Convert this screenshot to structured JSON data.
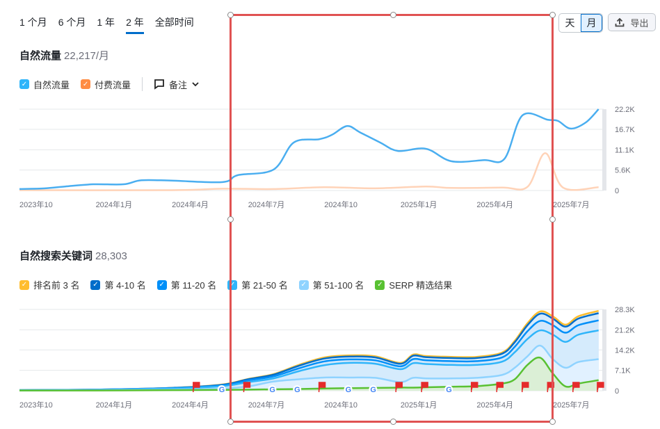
{
  "range_tabs": [
    {
      "label": "1 个月"
    },
    {
      "label": "6 个月"
    },
    {
      "label": "1 年"
    },
    {
      "label": "2 年",
      "active": true
    },
    {
      "label": "全部时间"
    }
  ],
  "granularity": {
    "day": "天",
    "month": "月",
    "selected": "月"
  },
  "export_label": "导出",
  "traffic": {
    "title": "自然流量",
    "value": "22,217/月",
    "legend": [
      {
        "label": "自然流量",
        "color": "#2fb5fa"
      },
      {
        "label": "付费流量",
        "color": "#ff8c43"
      }
    ],
    "notes_label": "备注"
  },
  "keywords": {
    "title": "自然搜索关键词",
    "value": "28,303",
    "legend": [
      {
        "label": "排名前 3 名",
        "color": "#ffbd2e"
      },
      {
        "label": "第 4-10 名",
        "color": "#006dca"
      },
      {
        "label": "第 11-20 名",
        "color": "#008ff8"
      },
      {
        "label": "第 21-50 名",
        "color": "#2fb5fa"
      },
      {
        "label": "第 51-100 名",
        "color": "#8fd3ff"
      },
      {
        "label": "SERP 精选结果",
        "color": "#59c132"
      }
    ]
  },
  "chart_data": [
    {
      "type": "line",
      "title": "自然流量",
      "x_unit": "months since 2023-10",
      "xlim": [
        0,
        23
      ],
      "ylim": [
        0,
        22.2
      ],
      "y_unit": "K",
      "x_ticks": [
        {
          "x": 0,
          "label": "2023年10"
        },
        {
          "x": 3,
          "label": "2024年1月"
        },
        {
          "x": 6,
          "label": "2024年4月"
        },
        {
          "x": 9,
          "label": "2024年7月"
        },
        {
          "x": 12,
          "label": "2024年10"
        },
        {
          "x": 15,
          "label": "2025年1月"
        },
        {
          "x": 18,
          "label": "2025年4月"
        },
        {
          "x": 21,
          "label": "2025年7月"
        }
      ],
      "y_ticks": [
        {
          "v": 0,
          "label": "0"
        },
        {
          "v": 5.6,
          "label": "5.6K"
        },
        {
          "v": 11.1,
          "label": "11.1K"
        },
        {
          "v": 16.7,
          "label": "16.7K"
        },
        {
          "v": 22.2,
          "label": "22.2K"
        }
      ],
      "series": [
        {
          "name": "自然流量",
          "color": "#4aaef0",
          "points": [
            [
              0,
              0.4
            ],
            [
              1,
              0.6
            ],
            [
              1.8,
              1.1
            ],
            [
              2.9,
              1.7
            ],
            [
              4.1,
              1.7
            ],
            [
              4.8,
              2.8
            ],
            [
              6,
              2.7
            ],
            [
              8,
              2.3
            ],
            [
              8.6,
              4.2
            ],
            [
              10,
              5.7
            ],
            [
              10.8,
              13.1
            ],
            [
              11.8,
              14
            ],
            [
              12.3,
              15.2
            ],
            [
              12.9,
              17.6
            ],
            [
              13.4,
              15.9
            ],
            [
              14.2,
              13.1
            ],
            [
              14.9,
              10.8
            ],
            [
              16,
              11.4
            ],
            [
              17,
              8
            ],
            [
              18.3,
              8.3
            ],
            [
              19.1,
              8.7
            ],
            [
              19.8,
              20.5
            ],
            [
              20.8,
              19.3
            ],
            [
              21.2,
              19
            ],
            [
              21.7,
              16.9
            ],
            [
              22.3,
              18.6
            ],
            [
              22.8,
              22.2
            ]
          ]
        },
        {
          "name": "付费流量",
          "color": "#ffd3b8",
          "points": [
            [
              0,
              0.1
            ],
            [
              6,
              0.1
            ],
            [
              8,
              0.5
            ],
            [
              10,
              0.4
            ],
            [
              12,
              0.9
            ],
            [
              14,
              0.6
            ],
            [
              16,
              1.1
            ],
            [
              17,
              0.7
            ],
            [
              19,
              0.8
            ],
            [
              20,
              1
            ],
            [
              20.7,
              10.2
            ],
            [
              21.4,
              0.8
            ],
            [
              22.8,
              0.9
            ]
          ]
        }
      ]
    },
    {
      "type": "area",
      "title": "自然搜索关键词",
      "x_unit": "months since 2023-10",
      "xlim": [
        0,
        23
      ],
      "ylim": [
        0,
        28.3
      ],
      "y_unit": "K",
      "x_ticks": [
        {
          "x": 0,
          "label": "2023年10"
        },
        {
          "x": 3,
          "label": "2024年1月"
        },
        {
          "x": 6,
          "label": "2024年4月"
        },
        {
          "x": 9,
          "label": "2024年7月"
        },
        {
          "x": 12,
          "label": "2024年10"
        },
        {
          "x": 15,
          "label": "2025年1月"
        },
        {
          "x": 18,
          "label": "2025年4月"
        },
        {
          "x": 21,
          "label": "2025年7月"
        }
      ],
      "y_ticks": [
        {
          "v": 0,
          "label": "0"
        },
        {
          "v": 7.1,
          "label": "7.1K"
        },
        {
          "v": 14.2,
          "label": "14.2K"
        },
        {
          "v": 21.2,
          "label": "21.2K"
        },
        {
          "v": 28.3,
          "label": "28.3K"
        }
      ],
      "x": [
        0,
        3,
        6,
        8,
        9,
        10,
        11,
        12,
        13,
        14,
        15,
        15.5,
        16,
        17,
        18,
        19,
        19.5,
        20,
        20.5,
        21,
        21.5,
        22,
        22.8
      ],
      "series": [
        {
          "name": "排名前 3 名",
          "color": "#ffbd2e",
          "values": [
            0.2,
            0.4,
            1,
            2.2,
            4.1,
            5.8,
            9,
            11.6,
            12.3,
            12,
            9.7,
            12.6,
            12.1,
            11.8,
            11.8,
            13.3,
            17.4,
            23.5,
            27.6,
            25.9,
            23,
            25.9,
            27.8
          ]
        },
        {
          "name": "第 4-10 名",
          "color": "#006dca",
          "values": [
            0.2,
            0.4,
            1,
            2.1,
            4,
            5.6,
            8.7,
            11.2,
            11.9,
            11.6,
            9.4,
            12.2,
            11.7,
            11.4,
            11.4,
            12.9,
            16.9,
            22.8,
            26.8,
            25.1,
            22.3,
            25.1,
            27
          ]
        },
        {
          "name": "第 11-20 名",
          "color": "#008ff8",
          "values": [
            0.2,
            0.4,
            0.9,
            1.9,
            3.6,
            5,
            7.8,
            10.2,
            10.9,
            10.6,
            8.5,
            11,
            10.6,
            10.3,
            10.3,
            11.6,
            15.3,
            20.7,
            24.3,
            22.8,
            20.2,
            22.8,
            24.5
          ]
        },
        {
          "name": "第 21-50 名",
          "color": "#2fb5fa",
          "values": [
            0.2,
            0.3,
            0.8,
            1.6,
            3,
            4.3,
            6.8,
            8.9,
            9.7,
            9.4,
            7.5,
            9.6,
            9.3,
            9,
            9,
            10.1,
            13.4,
            18,
            21,
            19.5,
            17,
            19.5,
            21
          ]
        },
        {
          "name": "第 51-100 名",
          "color": "#8fd3ff",
          "values": [
            0.1,
            0.2,
            0.4,
            0.8,
            1.5,
            3.2,
            4,
            4.6,
            4.6,
            4.5,
            3,
            4.5,
            4.3,
            4.3,
            4.5,
            5.5,
            8,
            12,
            15.7,
            11,
            8,
            10,
            11
          ]
        },
        {
          "name": "SERP 精选结果",
          "color": "#59c132",
          "values": [
            0.1,
            0.1,
            0.2,
            0.3,
            0.4,
            0.5,
            0.6,
            0.8,
            0.9,
            1,
            1.1,
            1.1,
            1.2,
            1.4,
            1.6,
            2.5,
            4,
            9,
            11.5,
            6,
            1.5,
            2.5,
            3.7
          ]
        }
      ],
      "markers": [
        {
          "x": 6.95,
          "type": "flag"
        },
        {
          "x": 7.96,
          "type": "google"
        },
        {
          "x": 8.94,
          "type": "flag"
        },
        {
          "x": 9.95,
          "type": "google"
        },
        {
          "x": 10.93,
          "type": "google"
        },
        {
          "x": 11.9,
          "type": "flag"
        },
        {
          "x": 12.94,
          "type": "google"
        },
        {
          "x": 13.92,
          "type": "google"
        },
        {
          "x": 14.93,
          "type": "flag"
        },
        {
          "x": 15.94,
          "type": "flag"
        },
        {
          "x": 16.9,
          "type": "google"
        },
        {
          "x": 17.9,
          "type": "flag"
        },
        {
          "x": 18.9,
          "type": "flag"
        },
        {
          "x": 19.9,
          "type": "flag"
        },
        {
          "x": 20.9,
          "type": "flag"
        },
        {
          "x": 21.9,
          "type": "flag"
        },
        {
          "x": 22.86,
          "type": "flag"
        }
      ]
    }
  ]
}
